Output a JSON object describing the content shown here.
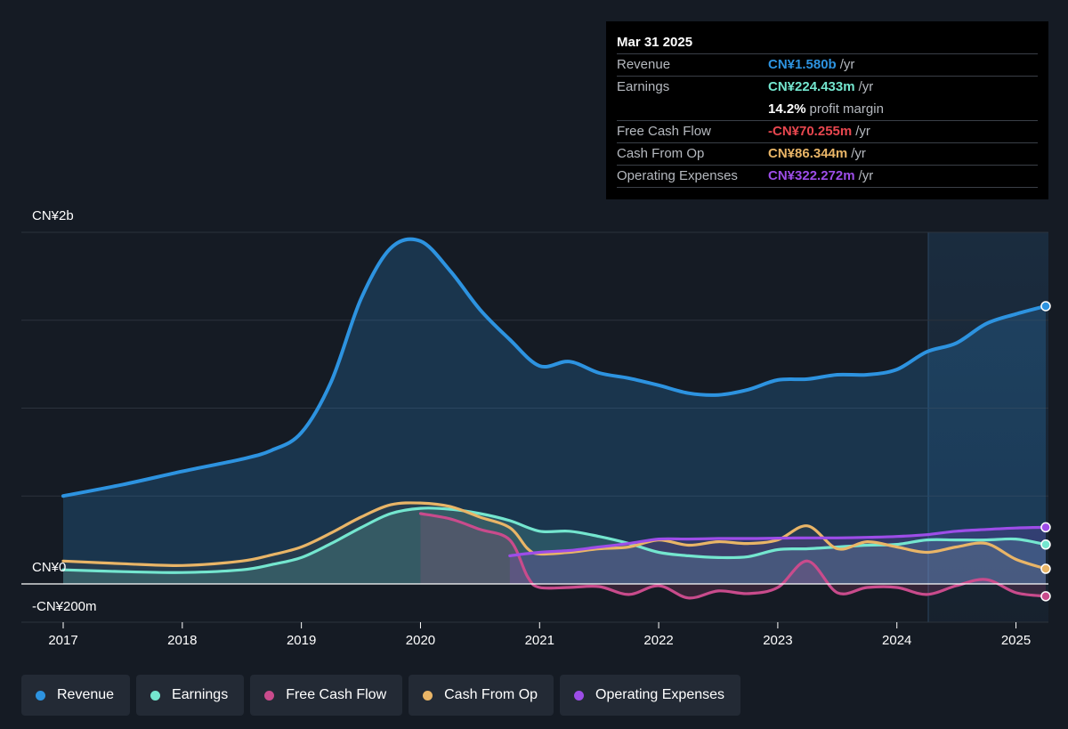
{
  "chart_data": {
    "type": "area",
    "currency_axis_labels": {
      "top": "CN¥2b",
      "zero": "CN¥0",
      "bottom": "-CN¥200m"
    },
    "x_ticks": [
      "2017",
      "2018",
      "2019",
      "2020",
      "2021",
      "2022",
      "2023",
      "2024",
      "2025"
    ],
    "ylim_millions": [
      -200,
      2000
    ],
    "colors": {
      "revenue": "#2d93e0",
      "earnings": "#74e6cf",
      "free_cash_flow": "#c94b8c",
      "cash_from_op": "#e9b567",
      "operating_expenses": "#9d4de8"
    },
    "series": [
      {
        "name": "Revenue",
        "key": "revenue",
        "x": [
          2017.0,
          2017.5,
          2018.0,
          2018.5,
          2018.75,
          2019.0,
          2019.25,
          2019.5,
          2019.75,
          2020.0,
          2020.25,
          2020.5,
          2020.75,
          2021.0,
          2021.25,
          2021.5,
          2021.75,
          2022.0,
          2022.25,
          2022.5,
          2022.75,
          2023.0,
          2023.25,
          2023.5,
          2023.75,
          2024.0,
          2024.25,
          2024.5,
          2024.75,
          2025.0,
          2025.25
        ],
        "values": [
          500,
          565,
          640,
          710,
          760,
          860,
          1150,
          1620,
          1910,
          1950,
          1780,
          1560,
          1390,
          1240,
          1265,
          1200,
          1170,
          1130,
          1085,
          1075,
          1105,
          1160,
          1165,
          1190,
          1190,
          1220,
          1320,
          1370,
          1480,
          1535,
          1580
        ]
      },
      {
        "name": "Earnings",
        "key": "earnings",
        "x": [
          2017.0,
          2017.5,
          2018.0,
          2018.5,
          2018.75,
          2019.0,
          2019.25,
          2019.5,
          2019.75,
          2020.0,
          2020.25,
          2020.5,
          2020.75,
          2021.0,
          2021.25,
          2021.5,
          2021.75,
          2022.0,
          2022.25,
          2022.5,
          2022.75,
          2023.0,
          2023.25,
          2023.5,
          2023.75,
          2024.0,
          2024.25,
          2024.5,
          2024.75,
          2025.0,
          2025.25
        ],
        "values": [
          80,
          70,
          65,
          80,
          110,
          150,
          230,
          320,
          400,
          430,
          425,
          400,
          360,
          300,
          300,
          270,
          230,
          180,
          160,
          150,
          155,
          195,
          200,
          210,
          220,
          225,
          250,
          250,
          250,
          255,
          224
        ]
      },
      {
        "name": "Free Cash Flow",
        "key": "free_cash_flow",
        "x": [
          2020.0,
          2020.25,
          2020.5,
          2020.75,
          2020.9,
          2021.0,
          2021.25,
          2021.5,
          2021.75,
          2022.0,
          2022.25,
          2022.5,
          2022.75,
          2023.0,
          2023.25,
          2023.5,
          2023.75,
          2024.0,
          2024.25,
          2024.5,
          2024.75,
          2025.0,
          2025.25
        ],
        "values": [
          400,
          370,
          310,
          250,
          40,
          -20,
          -20,
          -15,
          -60,
          -10,
          -80,
          -40,
          -55,
          -20,
          130,
          -50,
          -20,
          -20,
          -60,
          -10,
          25,
          -50,
          -70
        ]
      },
      {
        "name": "Cash From Op",
        "key": "cash_from_op",
        "x": [
          2017.0,
          2017.5,
          2018.0,
          2018.5,
          2018.75,
          2019.0,
          2019.25,
          2019.5,
          2019.75,
          2020.0,
          2020.25,
          2020.5,
          2020.75,
          2020.9,
          2021.0,
          2021.25,
          2021.5,
          2021.75,
          2022.0,
          2022.25,
          2022.5,
          2022.75,
          2023.0,
          2023.25,
          2023.5,
          2023.75,
          2024.0,
          2024.25,
          2024.5,
          2024.75,
          2025.0,
          2025.25
        ],
        "values": [
          130,
          115,
          105,
          130,
          165,
          210,
          290,
          380,
          450,
          460,
          440,
          380,
          320,
          200,
          170,
          180,
          200,
          210,
          250,
          220,
          240,
          230,
          250,
          330,
          200,
          240,
          210,
          180,
          210,
          230,
          140,
          86
        ]
      },
      {
        "name": "Operating Expenses",
        "key": "operating_expenses",
        "x": [
          2020.75,
          2021.0,
          2021.25,
          2021.5,
          2021.75,
          2022.0,
          2022.25,
          2022.5,
          2022.75,
          2023.0,
          2023.25,
          2023.5,
          2023.75,
          2024.0,
          2024.25,
          2024.5,
          2024.75,
          2025.0,
          2025.25
        ],
        "values": [
          160,
          180,
          190,
          210,
          230,
          255,
          255,
          258,
          258,
          260,
          262,
          262,
          265,
          270,
          280,
          300,
          310,
          318,
          322
        ]
      }
    ],
    "tooltip_date": "Mar 31 2025"
  },
  "tooltip": {
    "date": "Mar 31 2025",
    "rows": [
      {
        "label": "Revenue",
        "value": "CN¥1.580b",
        "unit": "/yr",
        "color": "#2d93e0"
      },
      {
        "label": "Earnings",
        "value": "CN¥224.433m",
        "unit": "/yr",
        "color": "#74e6cf"
      },
      {
        "label": "",
        "value": "14.2%",
        "unit": "profit margin",
        "color": "#ffffff"
      },
      {
        "label": "Free Cash Flow",
        "value": "-CN¥70.255m",
        "unit": "/yr",
        "color": "#e8474f"
      },
      {
        "label": "Cash From Op",
        "value": "CN¥86.344m",
        "unit": "/yr",
        "color": "#e9b567"
      },
      {
        "label": "Operating Expenses",
        "value": "CN¥322.272m",
        "unit": "/yr",
        "color": "#9d4de8"
      }
    ]
  },
  "legend": [
    {
      "label": "Revenue",
      "color": "#2d93e0"
    },
    {
      "label": "Earnings",
      "color": "#74e6cf"
    },
    {
      "label": "Free Cash Flow",
      "color": "#c94b8c"
    },
    {
      "label": "Cash From Op",
      "color": "#e9b567"
    },
    {
      "label": "Operating Expenses",
      "color": "#9d4de8"
    }
  ]
}
